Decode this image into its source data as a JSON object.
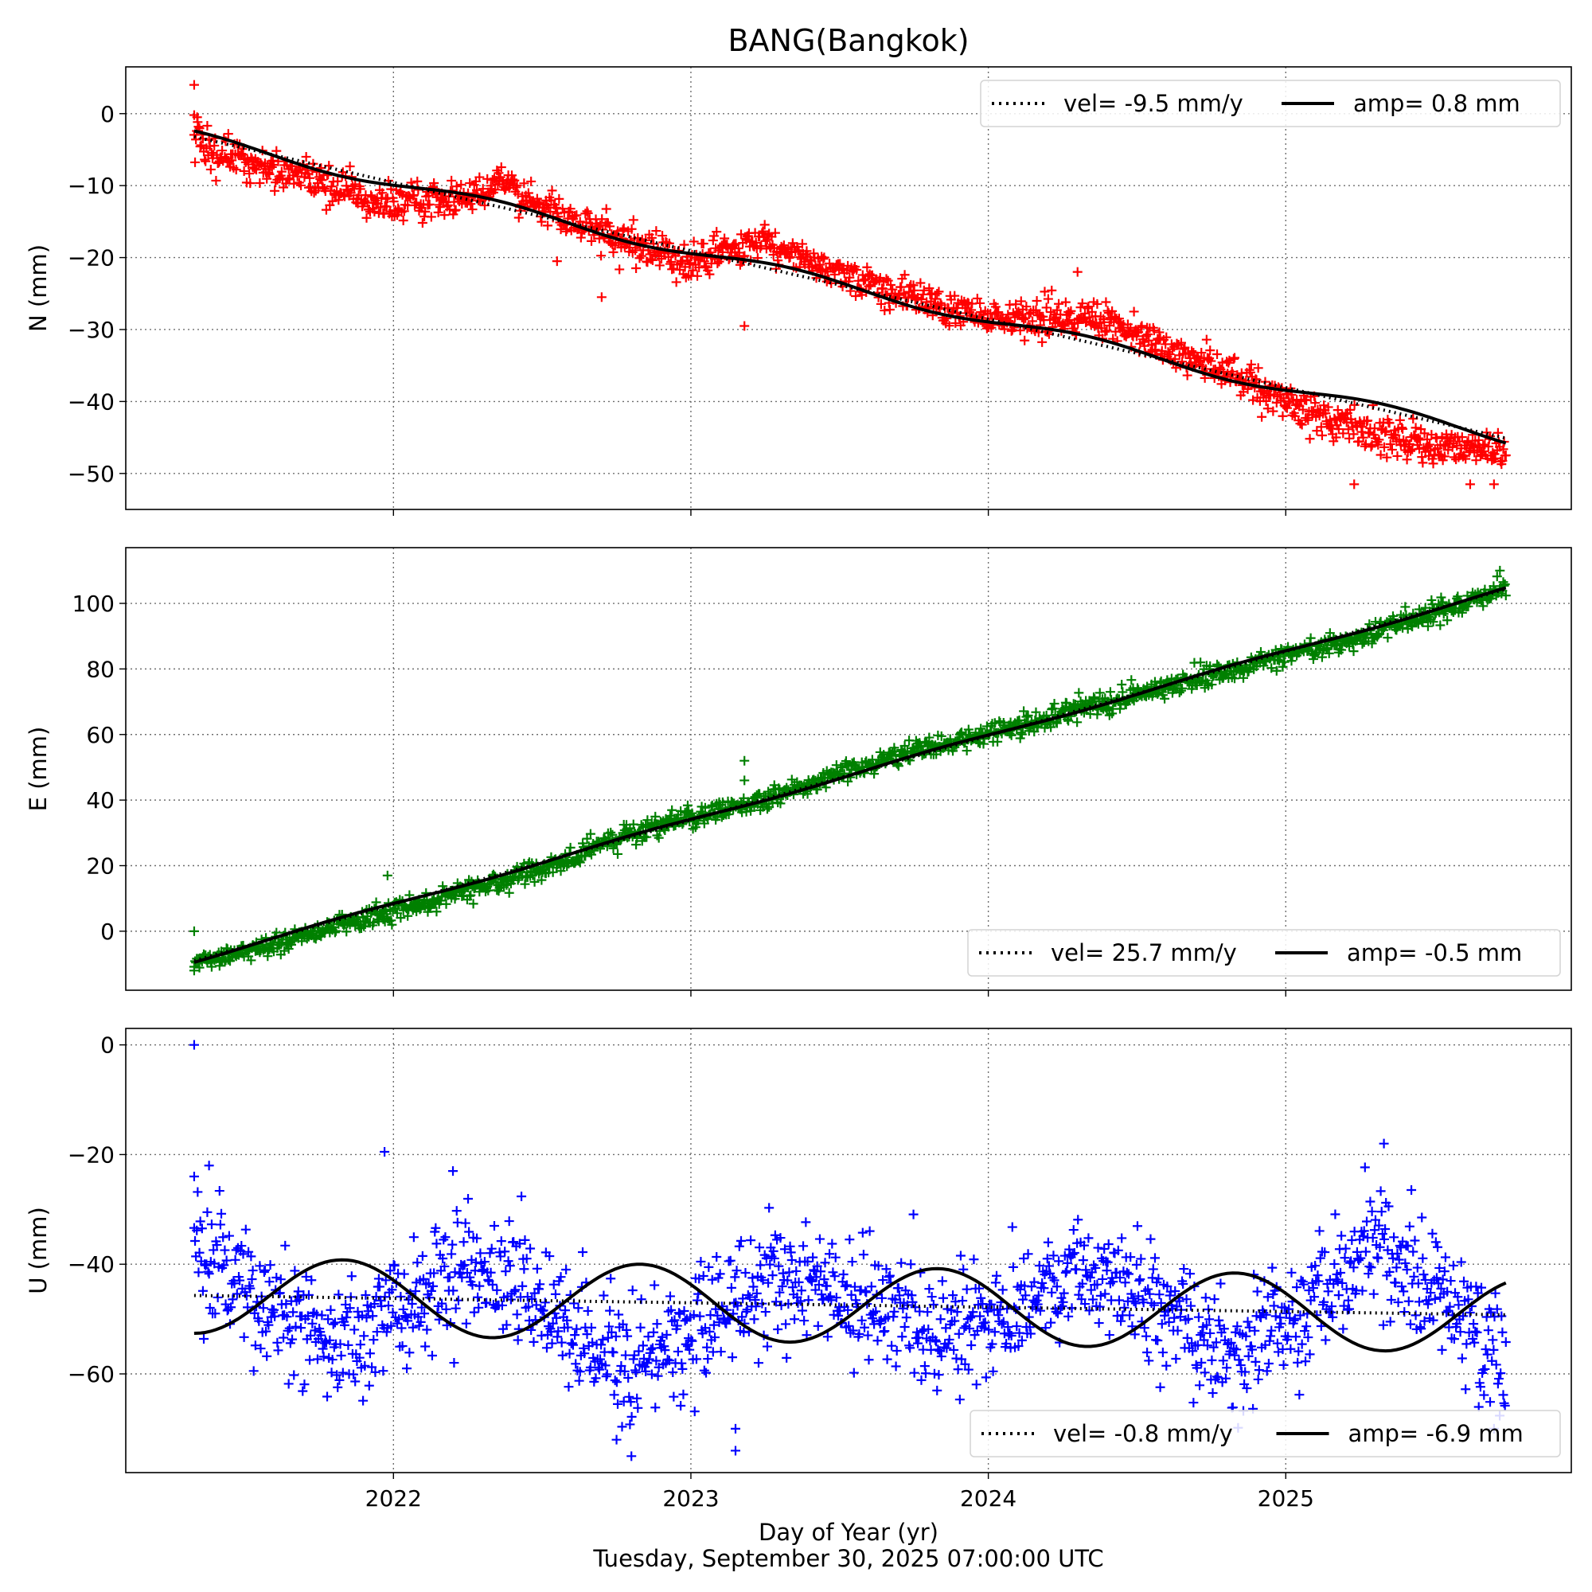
{
  "title": "BANG(Bangkok)",
  "xlabel": "Day of Year (yr)",
  "footer": "Tuesday, September 30, 2025 07:00:00 UTC",
  "x_ticks": [
    2022,
    2023,
    2024,
    2025
  ],
  "x_tick_labels": [
    "2022",
    "2023",
    "2024",
    "2025"
  ],
  "chart_data": [
    {
      "type": "scatter",
      "component": "N",
      "ylabel": "N (mm)",
      "marker": "+",
      "color": "#ff0000",
      "xlim": [
        2021.1,
        2025.96
      ],
      "ylim": [
        -55,
        6.5
      ],
      "y_ticks": [
        0,
        -10,
        -20,
        -30,
        -40,
        -50
      ],
      "y_tick_labels": [
        "0",
        "−10",
        "−20",
        "−30",
        "−40",
        "−50"
      ],
      "grid": true,
      "legend": {
        "placement": "upper right",
        "entries": [
          {
            "label": "vel= -9.5 mm/y",
            "style": "dotted"
          },
          {
            "label": "amp= 0.8 mm",
            "style": "solid"
          }
        ]
      },
      "fit": {
        "start": 2021.33,
        "end": 2025.74,
        "y0": -3.2,
        "velocity_mm_per_yr": -9.5,
        "amplitude_mm": 0.8
      },
      "anchors": [
        [
          2021.33,
          -4
        ],
        [
          2021.5,
          -7
        ],
        [
          2021.75,
          -9.5
        ],
        [
          2022.0,
          -12.5
        ],
        [
          2022.25,
          -11.5
        ],
        [
          2022.35,
          -10
        ],
        [
          2022.5,
          -13
        ],
        [
          2022.75,
          -17.5
        ],
        [
          2023.0,
          -20.5
        ],
        [
          2023.25,
          -18
        ],
        [
          2023.5,
          -22
        ],
        [
          2023.75,
          -25.5
        ],
        [
          2024.0,
          -28.5
        ],
        [
          2024.25,
          -28.5
        ],
        [
          2024.4,
          -28.5
        ],
        [
          2024.6,
          -33
        ],
        [
          2024.8,
          -36
        ],
        [
          2025.0,
          -40
        ],
        [
          2025.25,
          -44
        ],
        [
          2025.5,
          -46
        ],
        [
          2025.74,
          -47
        ]
      ],
      "point_count": 1500,
      "noise_mm": 1.3,
      "outliers": [
        [
          2021.33,
          4
        ],
        [
          2021.33,
          -0.2
        ],
        [
          2021.34,
          -0.5
        ],
        [
          2022.55,
          -20.5
        ],
        [
          2022.7,
          -25.5
        ],
        [
          2023.18,
          -29.5
        ],
        [
          2024.3,
          -22
        ],
        [
          2025.23,
          -51.5
        ],
        [
          2025.62,
          -51.5
        ],
        [
          2025.7,
          -51.5
        ]
      ]
    },
    {
      "type": "scatter",
      "component": "E",
      "ylabel": "E (mm)",
      "marker": "+",
      "color": "#008000",
      "xlim": [
        2021.1,
        2025.96
      ],
      "ylim": [
        -18,
        117
      ],
      "y_ticks": [
        0,
        20,
        40,
        60,
        80,
        100
      ],
      "y_tick_labels": [
        "0",
        "20",
        "40",
        "60",
        "80",
        "100"
      ],
      "grid": true,
      "legend": {
        "placement": "lower right",
        "entries": [
          {
            "label": "vel= 25.7 mm/y",
            "style": "dotted"
          },
          {
            "label": "amp= -0.5 mm",
            "style": "solid"
          }
        ]
      },
      "fit": {
        "start": 2021.33,
        "end": 2025.74,
        "y0": -9,
        "velocity_mm_per_yr": 25.7,
        "amplitude_mm": -0.5
      },
      "anchors": [
        [
          2021.33,
          -9
        ],
        [
          2021.6,
          -4
        ],
        [
          2021.9,
          3.5
        ],
        [
          2022.2,
          11
        ],
        [
          2022.5,
          19
        ],
        [
          2022.75,
          28
        ],
        [
          2023.0,
          35
        ],
        [
          2023.25,
          40
        ],
        [
          2023.5,
          48
        ],
        [
          2023.75,
          55
        ],
        [
          2024.0,
          60
        ],
        [
          2024.25,
          66
        ],
        [
          2024.5,
          72
        ],
        [
          2024.75,
          78
        ],
        [
          2025.0,
          84
        ],
        [
          2025.25,
          90
        ],
        [
          2025.5,
          97
        ],
        [
          2025.74,
          105
        ]
      ],
      "point_count": 1500,
      "noise_mm": 1.6,
      "outliers": [
        [
          2021.33,
          0
        ],
        [
          2021.33,
          -12
        ],
        [
          2021.98,
          17
        ],
        [
          2023.18,
          52
        ],
        [
          2023.18,
          46
        ],
        [
          2025.72,
          110
        ]
      ]
    },
    {
      "type": "scatter",
      "component": "U",
      "ylabel": "U (mm)",
      "marker": "+",
      "color": "#0000ff",
      "xlim": [
        2021.1,
        2025.96
      ],
      "ylim": [
        -78,
        3
      ],
      "y_ticks": [
        0,
        -20,
        -40,
        -60
      ],
      "y_tick_labels": [
        "0",
        "−20",
        "−40",
        "−60"
      ],
      "grid": true,
      "legend": {
        "placement": "lower right",
        "entries": [
          {
            "label": "vel= -0.8 mm/y",
            "style": "dotted"
          },
          {
            "label": "amp= -6.9 mm",
            "style": "solid"
          }
        ]
      },
      "fit": {
        "start": 2021.33,
        "end": 2025.74,
        "y0": -45.7,
        "velocity_mm_per_yr": -0.8,
        "amplitude_mm": -6.9
      },
      "anchors": [
        [
          2021.33,
          -37
        ],
        [
          2021.5,
          -44
        ],
        [
          2021.8,
          -55
        ],
        [
          2022.0,
          -49
        ],
        [
          2022.3,
          -40
        ],
        [
          2022.55,
          -50
        ],
        [
          2022.8,
          -58
        ],
        [
          2023.0,
          -53
        ],
        [
          2023.3,
          -42
        ],
        [
          2023.55,
          -46
        ],
        [
          2023.8,
          -53
        ],
        [
          2024.0,
          -50
        ],
        [
          2024.3,
          -41
        ],
        [
          2024.55,
          -46
        ],
        [
          2024.8,
          -57
        ],
        [
          2025.0,
          -50
        ],
        [
          2025.3,
          -38
        ],
        [
          2025.5,
          -44
        ],
        [
          2025.74,
          -60
        ]
      ],
      "point_count": 1500,
      "noise_mm": 5.5,
      "outliers": [
        [
          2021.33,
          0
        ],
        [
          2021.33,
          -24
        ],
        [
          2021.38,
          -22
        ],
        [
          2021.97,
          -19.5
        ],
        [
          2022.2,
          -23
        ],
        [
          2022.75,
          -72
        ],
        [
          2022.8,
          -75
        ],
        [
          2023.15,
          -70
        ],
        [
          2023.15,
          -74
        ],
        [
          2025.33,
          -18
        ],
        [
          2025.7,
          -70
        ]
      ]
    }
  ]
}
